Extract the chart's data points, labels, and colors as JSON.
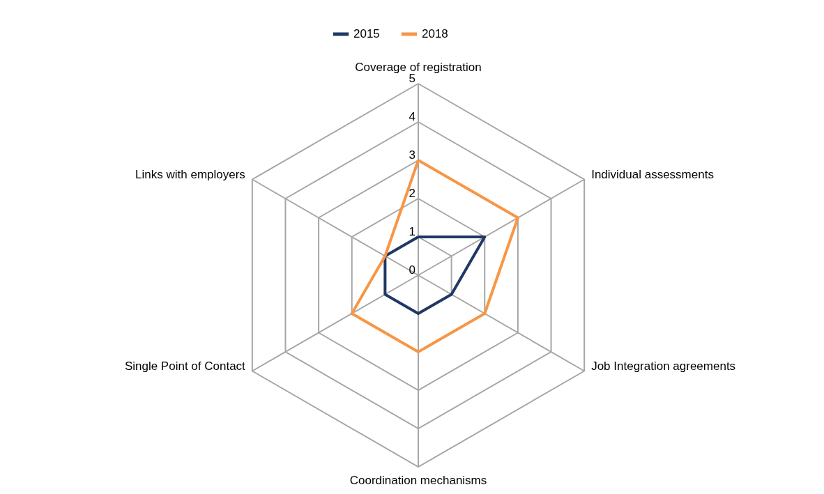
{
  "chart_data": {
    "type": "radar",
    "categories": [
      "Coverage of registration",
      "Individual assessments",
      "Job Integration agreements",
      "Coordination mechanisms",
      "Single Point of Contact",
      "Links with employers"
    ],
    "series": [
      {
        "name": "2015",
        "color": "#1f3864",
        "values": [
          1,
          2,
          1,
          1,
          1,
          1
        ]
      },
      {
        "name": "2018",
        "color": "#f79646",
        "values": [
          3,
          3,
          2,
          2,
          2,
          1
        ]
      }
    ],
    "ylim": [
      0,
      5
    ],
    "yticks": [
      0,
      1,
      2,
      3,
      4,
      5
    ],
    "grid": true,
    "legend": "top"
  }
}
